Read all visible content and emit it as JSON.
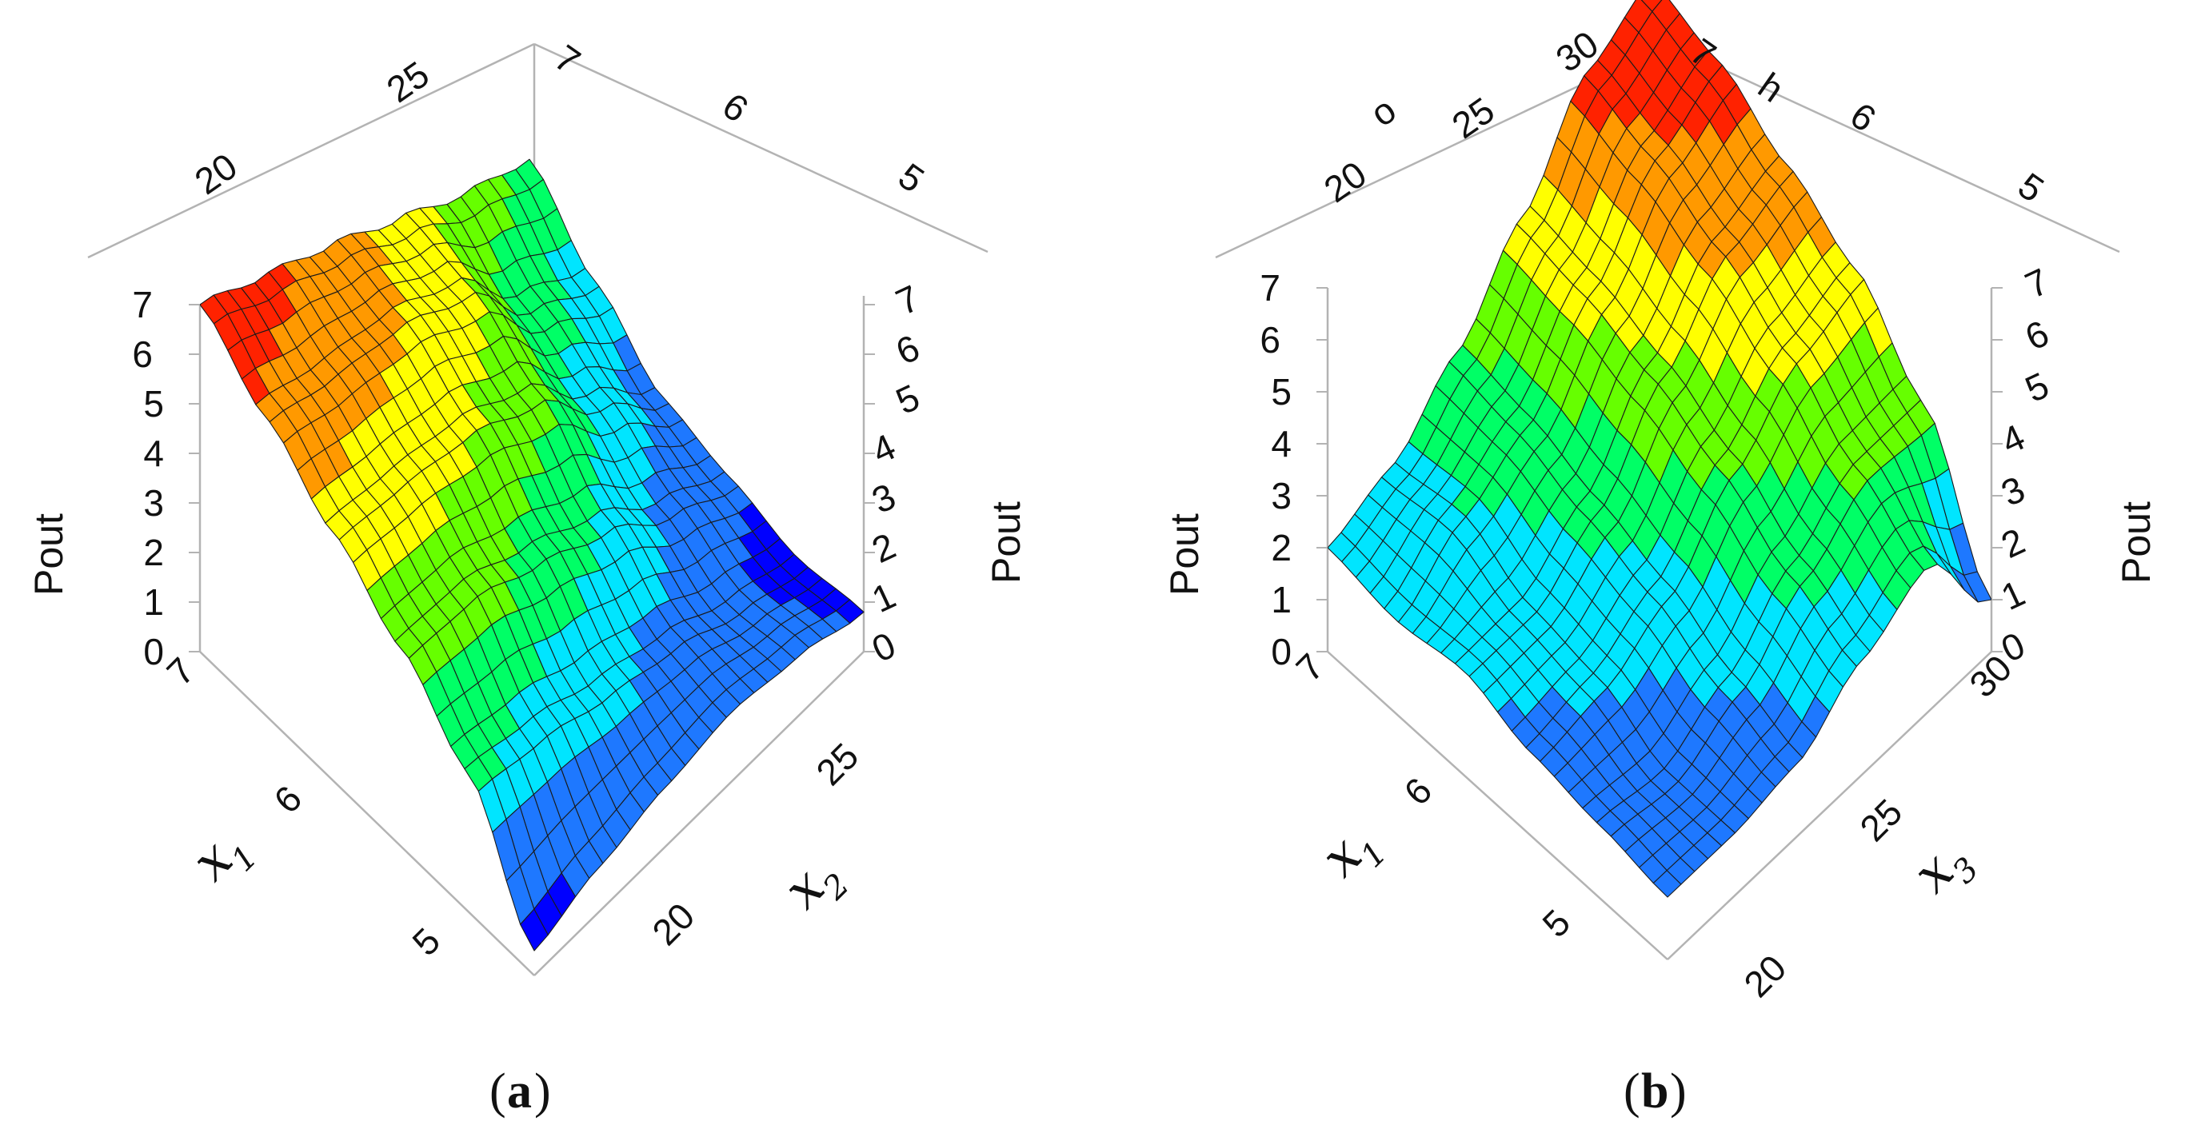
{
  "chart_data": [
    {
      "type": "surface3d",
      "panel_label": "a",
      "z_axis": {
        "label": "Pout",
        "ticks": [
          "0",
          "1",
          "2",
          "3",
          "4",
          "5",
          "6",
          "7"
        ],
        "range": [
          0,
          7
        ]
      },
      "x_axis": {
        "var": "x",
        "sub": "1",
        "ticks": [
          "5",
          "6",
          "7"
        ],
        "range": [
          4.5,
          7
        ]
      },
      "y_axis": {
        "var": "x",
        "sub": "2",
        "ticks": [
          "20",
          "25"
        ],
        "range": [
          18,
          28
        ]
      },
      "back_axis_1": {
        "ticks": [
          "20",
          "25"
        ]
      },
      "back_axis_2": {
        "ticks": [
          "5",
          "6",
          "7"
        ]
      },
      "colors": [
        "#0000ff",
        "#1e78ff",
        "#00e5ff",
        "#00ff66",
        "#66ff00",
        "#ffff00",
        "#ff9900",
        "#ff2200"
      ],
      "x_values": [
        7.0,
        6.5,
        6.0,
        5.5,
        5.0,
        4.5
      ],
      "y_values": [
        18,
        20,
        22,
        24,
        26,
        28
      ],
      "z_values": [
        [
          7.0,
          6.3,
          5.6,
          4.8,
          4.0,
          3.4
        ],
        [
          6.0,
          5.6,
          5.3,
          4.6,
          3.0,
          2.2
        ],
        [
          5.0,
          4.8,
          4.5,
          3.8,
          2.4,
          1.2
        ],
        [
          4.0,
          3.9,
          3.3,
          2.6,
          1.6,
          0.9
        ],
        [
          2.8,
          2.5,
          2.0,
          1.6,
          1.0,
          0.6
        ],
        [
          0.5,
          0.9,
          1.2,
          1.4,
          1.2,
          0.8
        ]
      ]
    },
    {
      "type": "surface3d",
      "panel_label": "b",
      "z_axis": {
        "label": "Pout",
        "ticks": [
          "0",
          "1",
          "2",
          "3",
          "4",
          "5",
          "6",
          "7"
        ],
        "range": [
          0,
          7
        ]
      },
      "x_axis": {
        "var": "x",
        "sub": "1",
        "ticks": [
          "5",
          "6",
          "7"
        ],
        "range": [
          4.5,
          7
        ]
      },
      "y_axis": {
        "var": "x",
        "sub": "3",
        "ticks": [
          "20",
          "25",
          "30"
        ],
        "range": [
          20,
          30
        ]
      },
      "back_axis_1": {
        "ticks": [
          "20",
          "25",
          "30"
        ],
        "label": "o"
      },
      "back_axis_2": {
        "ticks": [
          "5",
          "6",
          "7"
        ],
        "label": "h"
      },
      "colors": [
        "#0000ff",
        "#1e78ff",
        "#00e5ff",
        "#00ff66",
        "#66ff00",
        "#ffff00",
        "#ff9900",
        "#ff2200"
      ],
      "x_values": [
        7.0,
        6.5,
        6.0,
        5.5,
        5.0,
        4.5
      ],
      "y_values": [
        20,
        22,
        24,
        26,
        28,
        30
      ],
      "z_values": [
        [
          2.0,
          2.4,
          3.4,
          4.8,
          6.4,
          7.0
        ],
        [
          1.8,
          2.6,
          3.2,
          4.6,
          6.0,
          6.6
        ],
        [
          2.0,
          2.0,
          2.8,
          4.2,
          5.4,
          5.8
        ],
        [
          1.6,
          1.8,
          2.4,
          3.6,
          4.6,
          5.0
        ],
        [
          1.4,
          1.2,
          1.8,
          2.8,
          3.6,
          3.6
        ],
        [
          1.2,
          1.2,
          1.4,
          2.2,
          2.8,
          1.0
        ]
      ]
    }
  ]
}
